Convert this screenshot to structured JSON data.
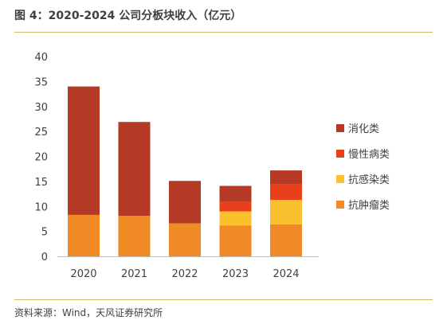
{
  "header": {
    "title": "图 4：2020-2024 公司分板块收入（亿元）"
  },
  "footer": {
    "source": "资料来源：Wind，天风证券研究所"
  },
  "chart_data": {
    "type": "bar",
    "stacked": true,
    "title": "",
    "xlabel": "",
    "ylabel": "",
    "ylim": [
      0,
      40
    ],
    "yticks": [
      0,
      5,
      10,
      15,
      20,
      25,
      30,
      35,
      40
    ],
    "categories": [
      "2020",
      "2021",
      "2022",
      "2023",
      "2024"
    ],
    "legend_position": "right",
    "grid": false,
    "series": [
      {
        "name": "抗肿瘤类",
        "color": "#F08A24",
        "values": [
          8.3,
          8.1,
          6.6,
          6.2,
          6.4
        ]
      },
      {
        "name": "抗感染类",
        "color": "#FBC02D",
        "values": [
          0,
          0,
          0,
          2.8,
          4.9
        ]
      },
      {
        "name": "慢性病类",
        "color": "#E8401C",
        "values": [
          0,
          0,
          0,
          2.0,
          3.2
        ]
      },
      {
        "name": "消化类",
        "color": "#B53A26",
        "values": [
          25.7,
          18.8,
          8.5,
          3.1,
          2.7
        ]
      }
    ],
    "legend_order": [
      "消化类",
      "慢性病类",
      "抗感染类",
      "抗肿瘤类"
    ]
  }
}
